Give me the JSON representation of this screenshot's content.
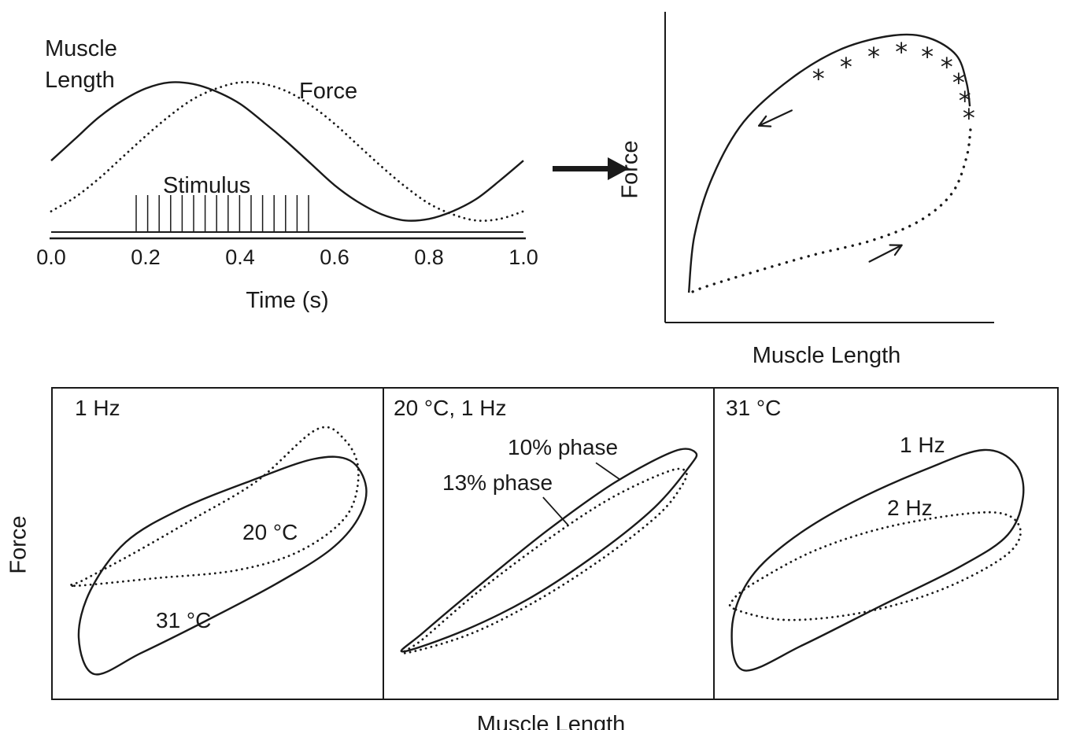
{
  "figure": {
    "background": "#ffffff",
    "ink": "#1a1a1a"
  },
  "top_left_plot": {
    "muscle_label_line1": "Muscle",
    "muscle_label_line2": "Length",
    "force_label": "Force",
    "stimulus_label": "Stimulus",
    "x_axis_label": "Time (s)",
    "x_ticks": [
      "0.0",
      "0.2",
      "0.4",
      "0.6",
      "0.8",
      "1.0"
    ]
  },
  "top_right_plot": {
    "y_axis_label": "Force",
    "x_axis_label": "Muscle Length"
  },
  "bottom_panels": {
    "y_axis_label": "Force",
    "x_axis_label": "Muscle Length",
    "panel1": {
      "condition_label": "1 Hz",
      "dotted_loop_label": "20 °C",
      "solid_loop_label": "31 °C"
    },
    "panel2": {
      "condition_label": "20 °C, 1 Hz",
      "solid_loop_label": "10% phase",
      "dotted_loop_label": "13% phase"
    },
    "panel3": {
      "condition_label": "31 °C",
      "solid_loop_label": "1 Hz",
      "dotted_loop_label": "2 Hz"
    }
  },
  "chart_data": [
    {
      "id": "time-series",
      "type": "line",
      "xlabel": "Time (s)",
      "x_range": [
        0,
        1
      ],
      "x_tick_values": [
        0.0,
        0.2,
        0.4,
        0.6,
        0.8,
        1.0
      ],
      "series": [
        {
          "name": "Muscle Length",
          "style": "solid",
          "x": [
            0,
            0.05,
            0.1,
            0.15,
            0.2,
            0.25,
            0.3,
            0.35,
            0.4,
            0.45,
            0.5,
            0.55,
            0.6,
            0.65,
            0.7,
            0.75,
            0.8,
            0.85,
            0.9,
            0.95,
            1
          ],
          "y": [
            0.44,
            0.58,
            0.72,
            0.83,
            0.91,
            0.95,
            0.94,
            0.89,
            0.81,
            0.69,
            0.56,
            0.42,
            0.28,
            0.17,
            0.09,
            0.05,
            0.06,
            0.11,
            0.19,
            0.31,
            0.44
          ]
        },
        {
          "name": "Force",
          "style": "dotted",
          "x": [
            0,
            0.05,
            0.1,
            0.15,
            0.2,
            0.25,
            0.3,
            0.35,
            0.4,
            0.45,
            0.5,
            0.55,
            0.6,
            0.65,
            0.7,
            0.75,
            0.8,
            0.85,
            0.9,
            0.95,
            1
          ],
          "y": [
            0.11,
            0.2,
            0.32,
            0.46,
            0.6,
            0.73,
            0.84,
            0.91,
            0.95,
            0.94,
            0.89,
            0.8,
            0.68,
            0.54,
            0.4,
            0.27,
            0.16,
            0.09,
            0.05,
            0.06,
            0.11
          ]
        },
        {
          "name": "Stimulus",
          "style": "spikes",
          "start": 0.18,
          "end": 0.545,
          "count": 16
        }
      ]
    },
    {
      "id": "work-loop",
      "type": "line",
      "xlabel": "Muscle Length",
      "ylabel": "Force",
      "series": [
        {
          "name": "shortening-solid",
          "style": "solid",
          "points": [
            [
              0.072,
              0.097
            ],
            [
              0.089,
              0.281
            ],
            [
              0.144,
              0.472
            ],
            [
              0.239,
              0.651
            ],
            [
              0.383,
              0.791
            ],
            [
              0.538,
              0.888
            ],
            [
              0.694,
              0.931
            ],
            [
              0.801,
              0.923
            ],
            [
              0.885,
              0.867
            ],
            [
              0.916,
              0.778
            ],
            [
              0.926,
              0.701
            ]
          ]
        },
        {
          "name": "lengthening-dotted",
          "style": "dotted-bold",
          "points": [
            [
              0.928,
              0.625
            ],
            [
              0.916,
              0.536
            ],
            [
              0.873,
              0.421
            ],
            [
              0.777,
              0.332
            ],
            [
              0.634,
              0.268
            ],
            [
              0.443,
              0.217
            ],
            [
              0.251,
              0.158
            ],
            [
              0.12,
              0.115
            ],
            [
              0.072,
              0.094
            ]
          ]
        }
      ],
      "asterisks": [
        [
          0.466,
          0.791
        ],
        [
          0.55,
          0.829
        ],
        [
          0.634,
          0.862
        ],
        [
          0.718,
          0.878
        ],
        [
          0.797,
          0.862
        ],
        [
          0.856,
          0.829
        ],
        [
          0.892,
          0.778
        ],
        [
          0.911,
          0.719
        ],
        [
          0.923,
          0.663
        ]
      ],
      "arrows": [
        {
          "x": 0.335,
          "y": 0.663,
          "angle": 205,
          "len": 46
        },
        {
          "x": 0.67,
          "y": 0.224,
          "angle": 27,
          "len": 46
        }
      ]
    },
    {
      "id": "panel-1",
      "type": "line",
      "title": "1 Hz",
      "series": [
        {
          "name": "31 °C",
          "style": "solid",
          "closed": true,
          "points": [
            [
              0.13,
              0.083
            ],
            [
              0.083,
              0.2
            ],
            [
              0.118,
              0.35
            ],
            [
              0.225,
              0.505
            ],
            [
              0.39,
              0.61
            ],
            [
              0.6,
              0.7
            ],
            [
              0.79,
              0.77
            ],
            [
              0.9,
              0.765
            ],
            [
              0.948,
              0.68
            ],
            [
              0.924,
              0.58
            ],
            [
              0.84,
              0.48
            ],
            [
              0.675,
              0.37
            ],
            [
              0.46,
              0.25
            ],
            [
              0.27,
              0.15
            ]
          ]
        },
        {
          "name": "20 °C",
          "style": "dotted",
          "closed": true,
          "points": [
            [
              0.07,
              0.365
            ],
            [
              0.32,
              0.39
            ],
            [
              0.56,
              0.415
            ],
            [
              0.75,
              0.477
            ],
            [
              0.89,
              0.59
            ],
            [
              0.925,
              0.73
            ],
            [
              0.885,
              0.83
            ],
            [
              0.8,
              0.865
            ],
            [
              0.62,
              0.7
            ],
            [
              0.43,
              0.58
            ],
            [
              0.25,
              0.47
            ],
            [
              0.1,
              0.385
            ]
          ]
        }
      ]
    },
    {
      "id": "panel-2",
      "type": "line",
      "title": "20 °C, 1 Hz",
      "series": [
        {
          "name": "10% phase",
          "style": "solid",
          "closed": true,
          "points": [
            [
              0.06,
              0.155
            ],
            [
              0.25,
              0.225
            ],
            [
              0.45,
              0.33
            ],
            [
              0.65,
              0.47
            ],
            [
              0.82,
              0.615
            ],
            [
              0.925,
              0.745
            ],
            [
              0.945,
              0.79
            ],
            [
              0.88,
              0.795
            ],
            [
              0.7,
              0.695
            ],
            [
              0.5,
              0.545
            ],
            [
              0.3,
              0.375
            ],
            [
              0.12,
              0.215
            ]
          ]
        },
        {
          "name": "13% phase",
          "style": "dotted",
          "closed": true,
          "points": [
            [
              0.065,
              0.15
            ],
            [
              0.26,
              0.21
            ],
            [
              0.46,
              0.315
            ],
            [
              0.66,
              0.45
            ],
            [
              0.83,
              0.59
            ],
            [
              0.9,
              0.68
            ],
            [
              0.915,
              0.73
            ],
            [
              0.86,
              0.73
            ],
            [
              0.68,
              0.64
            ],
            [
              0.48,
              0.5
            ],
            [
              0.28,
              0.34
            ],
            [
              0.12,
              0.195
            ]
          ]
        }
      ],
      "leaders": [
        {
          "from": [
            0.643,
            0.758
          ],
          "to": [
            0.715,
            0.705
          ]
        },
        {
          "from": [
            0.483,
            0.648
          ],
          "to": [
            0.558,
            0.56
          ]
        }
      ]
    },
    {
      "id": "panel-3",
      "type": "line",
      "title": "31 °C",
      "series": [
        {
          "name": "1 Hz",
          "style": "solid",
          "closed": true,
          "points": [
            [
              0.087,
              0.095
            ],
            [
              0.052,
              0.226
            ],
            [
              0.098,
              0.377
            ],
            [
              0.212,
              0.503
            ],
            [
              0.395,
              0.628
            ],
            [
              0.623,
              0.741
            ],
            [
              0.783,
              0.799
            ],
            [
              0.874,
              0.754
            ],
            [
              0.897,
              0.653
            ],
            [
              0.852,
              0.528
            ],
            [
              0.715,
              0.427
            ],
            [
              0.486,
              0.302
            ],
            [
              0.258,
              0.176
            ]
          ]
        },
        {
          "name": "2 Hz",
          "style": "dotted",
          "closed": true,
          "points": [
            [
              0.064,
              0.289
            ],
            [
              0.212,
              0.256
            ],
            [
              0.441,
              0.282
            ],
            [
              0.669,
              0.357
            ],
            [
              0.852,
              0.467
            ],
            [
              0.886,
              0.555
            ],
            [
              0.8,
              0.6
            ],
            [
              0.532,
              0.56
            ],
            [
              0.304,
              0.483
            ],
            [
              0.121,
              0.377
            ],
            [
              0.055,
              0.32
            ]
          ]
        }
      ]
    }
  ]
}
